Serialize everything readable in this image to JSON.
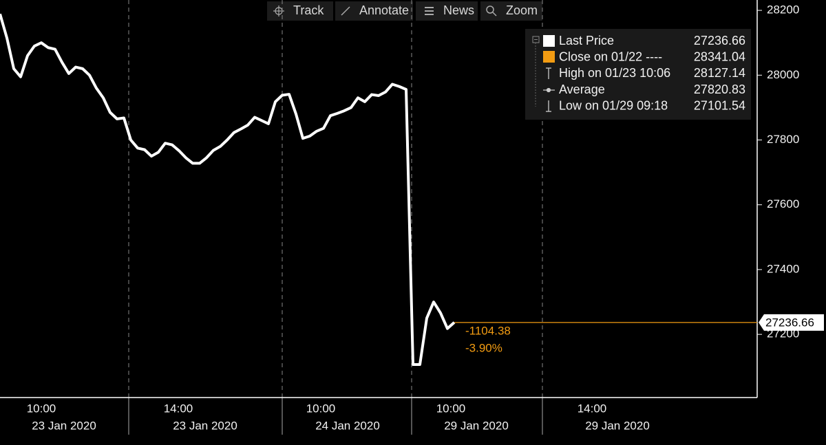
{
  "toolbar": [
    "Track",
    "Annotate",
    "News",
    "Zoom"
  ],
  "chart_data": {
    "type": "line",
    "legend": [
      {
        "name": "Last Price",
        "value": 27236.66
      },
      {
        "name": "Close on 01/22 ----",
        "value": 28341.04
      },
      {
        "name": "High on 01/23 10:06",
        "value": 28127.14
      },
      {
        "name": "Average",
        "value": 27820.83
      },
      {
        "name": "Low on 01/29 09:18",
        "value": 27101.54
      }
    ],
    "annotations": [
      "-1104.38",
      "-3.90%"
    ],
    "x_labels": [
      {
        "time": "10:00",
        "date": "23 Jan 2020"
      },
      {
        "time": "14:00",
        "date": "23 Jan 2020"
      },
      {
        "time": "10:00",
        "date": "24 Jan 2020"
      },
      {
        "time": "10:00",
        "date": "29 Jan 2020"
      },
      {
        "time": "14:00",
        "date": "29 Jan 2020"
      }
    ],
    "series": [
      {
        "name": "Last Price",
        "color": "#ffffff",
        "values": [
          28189,
          28115,
          28020,
          27995,
          28060,
          28090,
          28100,
          28085,
          28080,
          28040,
          28005,
          28025,
          28020,
          28000,
          27960,
          27930,
          27885,
          27865,
          27868,
          27800,
          27775,
          27770,
          27750,
          27762,
          27790,
          27785,
          27767,
          27745,
          27728,
          27728,
          27745,
          27768,
          27780,
          27800,
          27823,
          27834,
          27846,
          27870,
          27860,
          27850,
          27918,
          27938,
          27941,
          27880,
          27805,
          27812,
          27827,
          27836,
          27875,
          27882,
          27890,
          27900,
          27930,
          27918,
          27940,
          27937,
          27948,
          27972,
          27965,
          27956,
          27107,
          27107,
          27250,
          27300,
          27266,
          27218,
          27237
        ]
      }
    ],
    "last_color": "#f39c12",
    "ylim": [
      27005,
      28232
    ],
    "yticks": [
      27200,
      27400,
      27600,
      27800,
      28000,
      28200
    ]
  }
}
